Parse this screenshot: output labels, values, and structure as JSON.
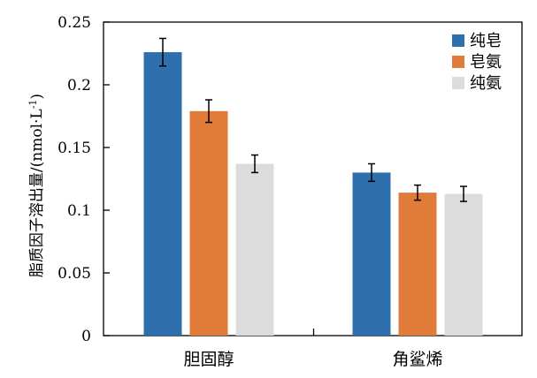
{
  "chart_data": {
    "type": "bar",
    "title": "",
    "xlabel": "",
    "ylabel": "脂质因子溶出量/(nmol·L",
    "ylabel_sup": "-1",
    "ylabel_close": ")",
    "ylim": [
      0,
      0.25
    ],
    "yticks": [
      "0",
      "0.05",
      "0.1",
      "0.15",
      "0.2",
      "0.25"
    ],
    "categories": [
      "胆固醇",
      "角鲨烯"
    ],
    "legend_position": "top-right",
    "grid": false,
    "series": [
      {
        "name": "纯皂",
        "color": "#2e6fad",
        "values": [
          0.226,
          0.13
        ],
        "errors": [
          0.011,
          0.007
        ]
      },
      {
        "name": "皂氨",
        "color": "#e07b39",
        "values": [
          0.179,
          0.114
        ],
        "errors": [
          0.009,
          0.006
        ]
      },
      {
        "name": "纯氨",
        "color": "#dcdcdc",
        "values": [
          0.137,
          0.113
        ],
        "errors": [
          0.007,
          0.006
        ]
      }
    ]
  }
}
